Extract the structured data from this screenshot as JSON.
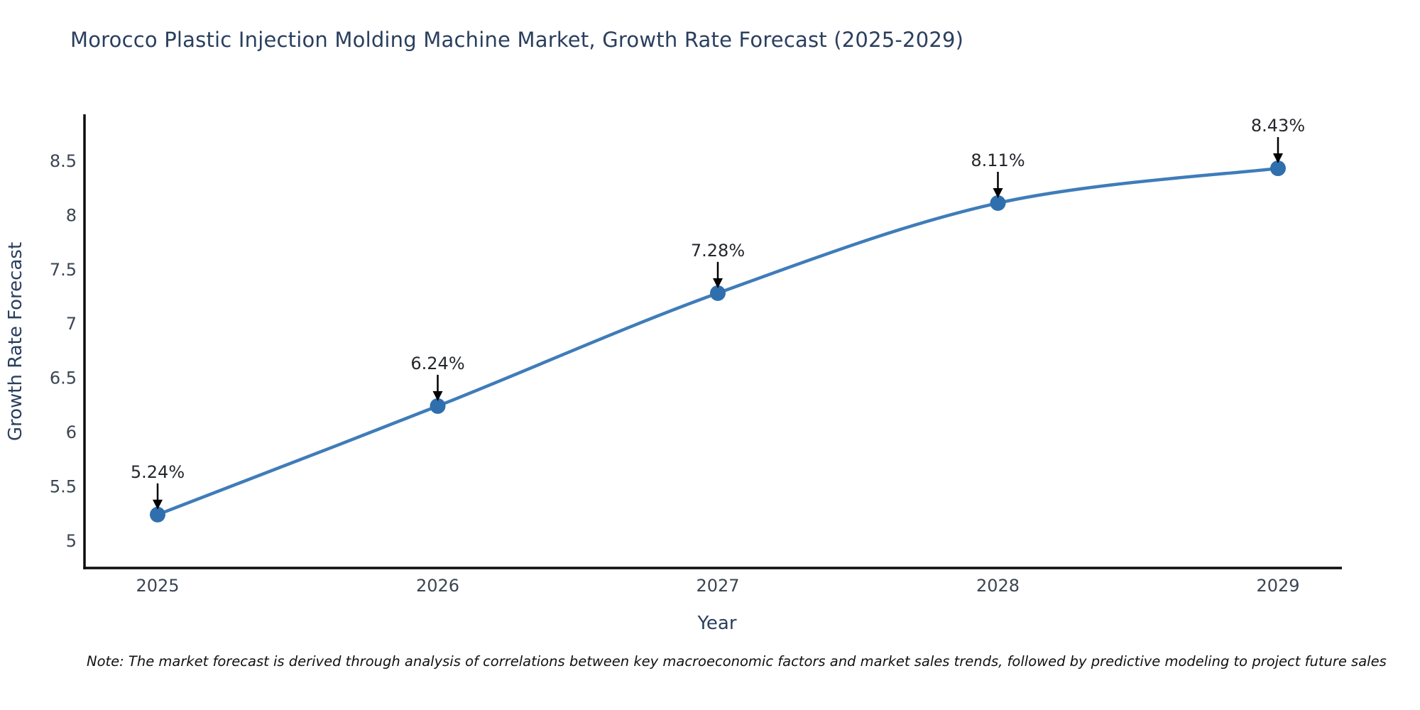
{
  "note": "Note: The market forecast is derived through analysis of correlations between key macroeconomic factors and market sales trends, followed by predictive modeling to project future sales",
  "colors": {
    "background": "#ffffff",
    "line": "#3f7cb9",
    "marker": "#2f6fad",
    "axis": "#0d0d0d",
    "tick": "#3b4552",
    "title": "#2a3f5f",
    "axis_title": "#2a3f5f",
    "annotation": "#24272c",
    "annotation_arrow": "#000000",
    "note_text": "#111111"
  },
  "chart_data": {
    "type": "line",
    "line_shape": "spline",
    "title": "Morocco Plastic Injection Molding Machine Market, Growth Rate Forecast (2025-2029)",
    "x": [
      "2025",
      "2026",
      "2027",
      "2028",
      "2029"
    ],
    "series": [
      {
        "name": "Growth Rate Forecast",
        "values": [
          5.24,
          6.24,
          7.28,
          8.11,
          8.43
        ]
      }
    ],
    "point_labels": [
      "5.24%",
      "6.24%",
      "7.28%",
      "8.11%",
      "8.43%"
    ],
    "xlabel": "Year",
    "ylabel": "Growth Rate Forecast",
    "yticks": [
      5,
      5.5,
      6,
      6.5,
      7,
      7.5,
      8,
      8.5
    ],
    "ylim": [
      4.75,
      8.93
    ],
    "grid": false,
    "legend_position": "none",
    "markers": true,
    "annotations": "each data point labeled with its percent value above a downward black arrow"
  }
}
